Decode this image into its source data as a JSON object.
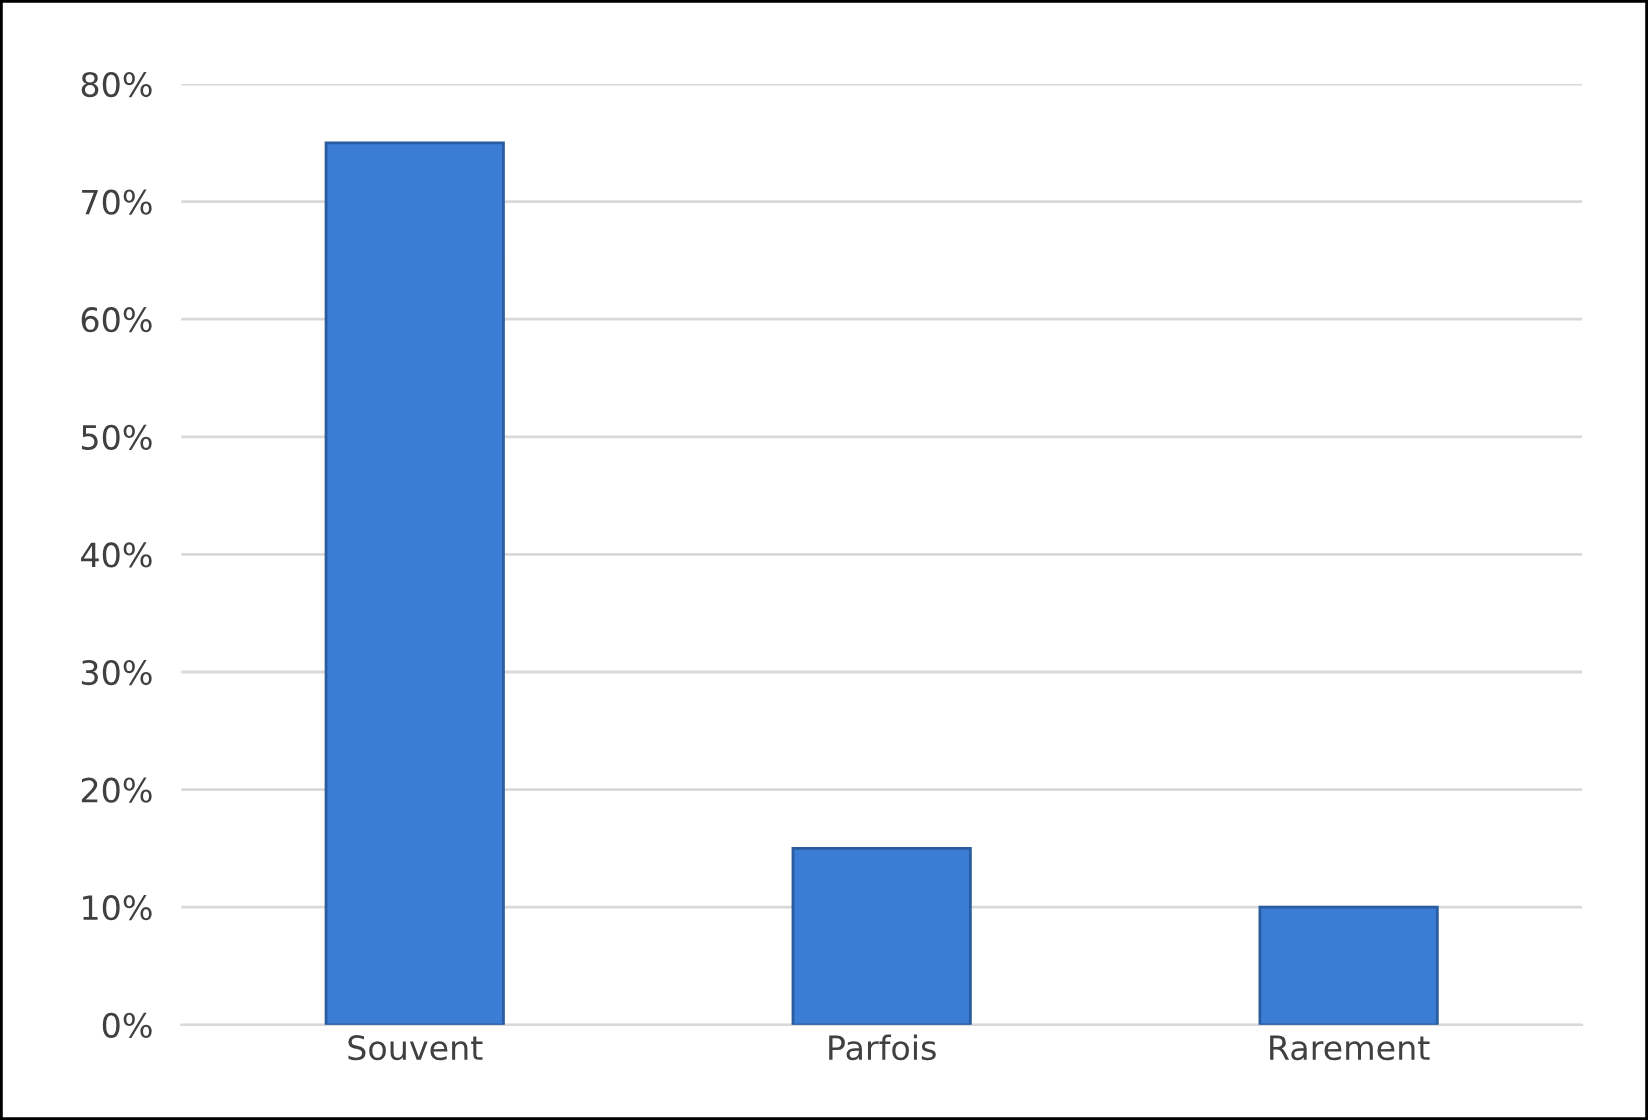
{
  "chart_data": {
    "type": "bar",
    "categories": [
      "Souvent",
      "Parfois",
      "Rarement"
    ],
    "values": [
      75,
      15,
      10
    ],
    "color": "#3b7cd4",
    "ylim": [
      0,
      80
    ],
    "yticks": [
      {
        "value": 0,
        "label": "0%"
      },
      {
        "value": 10,
        "label": "10%"
      },
      {
        "value": 20,
        "label": "20%"
      },
      {
        "value": 30,
        "label": "30%"
      },
      {
        "value": 40,
        "label": "40%"
      },
      {
        "value": 50,
        "label": "50%"
      },
      {
        "value": 60,
        "label": "60%"
      },
      {
        "value": 70,
        "label": "70%"
      },
      {
        "value": 80,
        "label": "80%"
      }
    ],
    "grid": "y"
  }
}
